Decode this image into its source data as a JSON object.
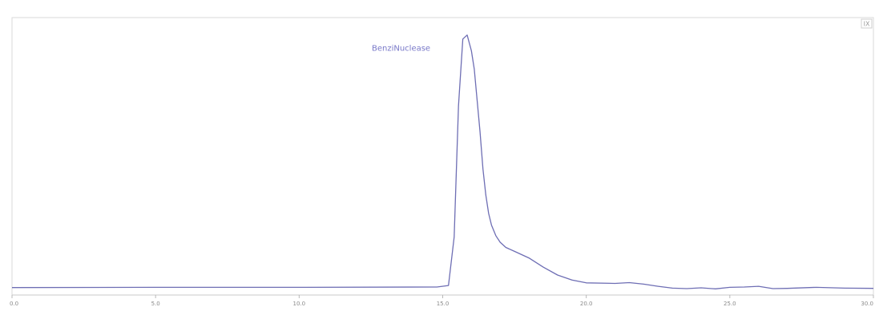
{
  "chart_data": {
    "type": "line",
    "title": "",
    "xlabel": "",
    "ylabel": "",
    "xlim": [
      0,
      30
    ],
    "ylim": [
      0,
      100
    ],
    "x_ticks": [
      0,
      5,
      10,
      15,
      20,
      25,
      30
    ],
    "x_tick_labels": [
      "0.0",
      "5.0",
      "10.0",
      "15.0",
      "20.0",
      "25.0",
      "30.0"
    ],
    "grid": false,
    "legend": "none",
    "annotations": [
      {
        "text": "BenziNuclease",
        "x": 13.55,
        "y": 91
      }
    ],
    "corner_button_label": "IX",
    "series": [
      {
        "color": "#6e6eb4",
        "x": [
          0.0,
          5.0,
          10.0,
          14.8,
          15.2,
          15.4,
          15.55,
          15.7,
          15.85,
          16.0,
          16.1,
          16.2,
          16.3,
          16.4,
          16.5,
          16.6,
          16.7,
          16.85,
          17.0,
          17.2,
          17.5,
          18.0,
          18.5,
          19.0,
          19.5,
          20.0,
          21.0,
          21.5,
          22.0,
          22.5,
          23.0,
          23.5,
          24.0,
          24.5,
          25.0,
          25.5,
          26.0,
          26.5,
          27.0,
          28.0,
          29.0,
          30.0
        ],
        "y": [
          0.7,
          0.8,
          0.8,
          0.9,
          1.5,
          20.0,
          70.0,
          95.5,
          97.0,
          91.0,
          84.0,
          72.0,
          60.0,
          46.0,
          36.0,
          29.0,
          24.5,
          20.5,
          18.0,
          16.0,
          14.5,
          12.0,
          8.5,
          5.5,
          3.6,
          2.5,
          2.3,
          2.6,
          2.0,
          1.2,
          0.5,
          0.3,
          0.6,
          0.2,
          0.8,
          0.9,
          1.2,
          0.3,
          0.4,
          0.8,
          0.5,
          0.4
        ]
      }
    ]
  }
}
